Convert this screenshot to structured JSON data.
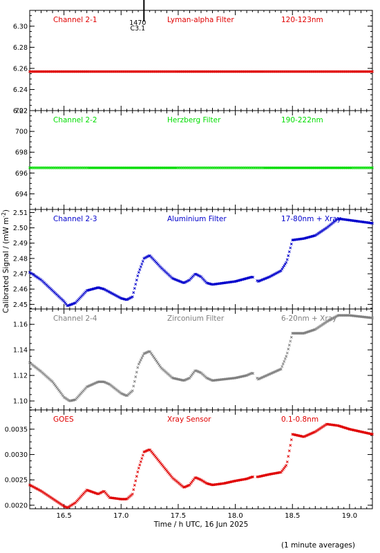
{
  "chart_data": [
    {
      "type": "scatter",
      "panel_label": "Channel 2-1",
      "filter": "Lyman-alpha Filter",
      "band": "120-123nm",
      "color": "#e00000",
      "ylim": [
        6.22,
        6.315
      ],
      "yticks": [
        6.22,
        6.24,
        6.26,
        6.28,
        6.3
      ],
      "ytick_labels": [
        "6.22",
        "6.24",
        "6.26",
        "6.28",
        "6.30"
      ],
      "flare_marker": {
        "x": 17.2,
        "label_top": "1470",
        "label_bottom": "C3.1"
      },
      "series": [
        {
          "x": [
            16.2,
            19.2
          ],
          "y": [
            6.257,
            6.257
          ]
        }
      ]
    },
    {
      "type": "scatter",
      "panel_label": "Channel 2-2",
      "filter": "Herzberg Filter",
      "band": "190-222nm",
      "color": "#00dd00",
      "ylim": [
        692.5,
        702
      ],
      "yticks": [
        694,
        696,
        698,
        700,
        702
      ],
      "ytick_labels": [
        "694",
        "696",
        "698",
        "700",
        "702"
      ],
      "series": [
        {
          "x": [
            16.2,
            19.2
          ],
          "y": [
            696.5,
            696.5
          ]
        }
      ]
    },
    {
      "type": "scatter",
      "panel_label": "Channel 2-3",
      "filter": "Aluminium Filter",
      "band": "17-80nm + Xray",
      "color": "#0000cc",
      "ylim": [
        2.447,
        2.512
      ],
      "yticks": [
        2.45,
        2.46,
        2.47,
        2.48,
        2.49,
        2.5,
        2.51
      ],
      "ytick_labels": [
        "2.45",
        "2.46",
        "2.47",
        "2.48",
        "2.49",
        "2.50",
        "2.51"
      ],
      "series": [
        {
          "x": [
            16.2,
            16.3,
            16.4,
            16.5,
            16.53,
            16.6,
            16.7,
            16.8,
            16.85,
            16.9,
            17.0,
            17.05,
            17.1,
            17.15,
            17.2,
            17.25,
            17.35,
            17.45,
            17.55,
            17.6,
            17.65,
            17.7,
            17.75,
            17.8,
            17.9,
            18.0,
            18.1,
            18.15,
            18.2,
            18.3,
            18.4,
            18.45,
            18.5,
            18.6,
            18.7,
            18.8,
            18.9,
            19.0,
            19.2
          ],
          "y": [
            2.471,
            2.466,
            2.459,
            2.452,
            2.449,
            2.451,
            2.459,
            2.461,
            2.46,
            2.458,
            2.454,
            2.453,
            2.455,
            2.47,
            2.48,
            2.482,
            2.474,
            2.467,
            2.464,
            2.466,
            2.47,
            2.468,
            2.464,
            2.463,
            2.464,
            2.465,
            2.467,
            2.468,
            2.465,
            2.468,
            2.472,
            2.478,
            2.492,
            2.493,
            2.495,
            2.5,
            2.506,
            2.505,
            2.503
          ]
        }
      ]
    },
    {
      "type": "scatter",
      "panel_label": "Channel 2-4",
      "filter": "Zirconium Filter",
      "band": "6-20nm + Xray",
      "color": "#808080",
      "ylim": [
        1.093,
        1.172
      ],
      "yticks": [
        1.1,
        1.12,
        1.14,
        1.16
      ],
      "ytick_labels": [
        "1.10",
        "1.12",
        "1.14",
        "1.16"
      ],
      "series": [
        {
          "x": [
            16.2,
            16.3,
            16.4,
            16.5,
            16.55,
            16.6,
            16.7,
            16.8,
            16.85,
            16.9,
            17.0,
            17.05,
            17.1,
            17.15,
            17.2,
            17.25,
            17.35,
            17.45,
            17.55,
            17.6,
            17.65,
            17.7,
            17.75,
            17.8,
            17.9,
            18.0,
            18.1,
            18.15,
            18.2,
            18.3,
            18.4,
            18.45,
            18.5,
            18.6,
            18.7,
            18.8,
            18.9,
            19.0,
            19.2
          ],
          "y": [
            1.13,
            1.123,
            1.115,
            1.103,
            1.1,
            1.101,
            1.111,
            1.115,
            1.115,
            1.113,
            1.106,
            1.104,
            1.108,
            1.128,
            1.137,
            1.139,
            1.126,
            1.118,
            1.116,
            1.118,
            1.124,
            1.122,
            1.118,
            1.116,
            1.117,
            1.118,
            1.12,
            1.122,
            1.117,
            1.121,
            1.125,
            1.136,
            1.153,
            1.153,
            1.156,
            1.162,
            1.167,
            1.167,
            1.165
          ]
        }
      ]
    },
    {
      "type": "scatter",
      "panel_label": "GOES",
      "filter": "Xray Sensor",
      "band": "0.1-0.8nm",
      "color": "#e00000",
      "ylim": [
        0.00193,
        0.00388
      ],
      "yticks": [
        0.002,
        0.0025,
        0.003,
        0.0035
      ],
      "ytick_labels": [
        "0.0020",
        "0.0025",
        "0.0030",
        "0.0035"
      ],
      "series": [
        {
          "x": [
            16.2,
            16.3,
            16.4,
            16.5,
            16.53,
            16.6,
            16.7,
            16.8,
            16.85,
            16.9,
            17.0,
            17.05,
            17.1,
            17.15,
            17.2,
            17.25,
            17.35,
            17.45,
            17.55,
            17.6,
            17.65,
            17.7,
            17.75,
            17.8,
            17.9,
            18.0,
            18.1,
            18.15,
            18.2,
            18.3,
            18.4,
            18.45,
            18.5,
            18.6,
            18.7,
            18.8,
            18.9,
            19.0,
            19.2
          ],
          "y": [
            0.0024,
            0.00228,
            0.00213,
            0.00198,
            0.00195,
            0.00205,
            0.0023,
            0.00222,
            0.00228,
            0.00215,
            0.00212,
            0.00212,
            0.00222,
            0.0027,
            0.00305,
            0.0031,
            0.00282,
            0.00254,
            0.00235,
            0.0024,
            0.00255,
            0.0025,
            0.00243,
            0.0024,
            0.00243,
            0.00248,
            0.00252,
            0.00256,
            0.00256,
            0.00261,
            0.00265,
            0.0028,
            0.0034,
            0.00335,
            0.00345,
            0.0036,
            0.00357,
            0.0035,
            0.0034
          ]
        }
      ]
    }
  ],
  "x_axis": {
    "xlim": [
      16.2,
      19.2
    ],
    "ticks": [
      16.5,
      17.0,
      17.5,
      18.0,
      18.5,
      19.0
    ],
    "tick_labels": [
      "16.5",
      "17.0",
      "17.5",
      "18.0",
      "18.5",
      "19.0"
    ],
    "label": "Time / h UTC, 16 Jun 2025"
  },
  "y_axis_label": "Calibrated Signal / (mW m",
  "y_axis_label_sup": "-2",
  "y_axis_label_end": ")",
  "footnote": "(1 minute averages)"
}
